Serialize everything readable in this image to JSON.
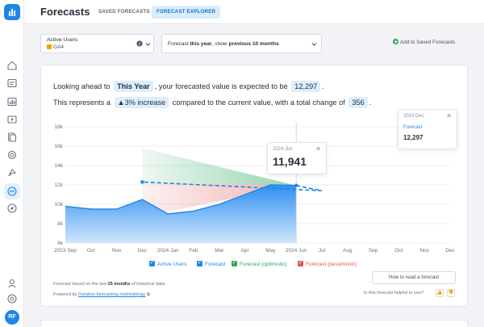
{
  "header": {
    "title": "Forecasts",
    "tabs": [
      {
        "label": "SAVED FORECASTS",
        "active": false
      },
      {
        "label": "FORECAST EXPLORER",
        "active": true
      }
    ]
  },
  "sidebar": {
    "avatar_initials": "RF",
    "items": [
      "home-icon",
      "dashboard-icon",
      "reports-icon",
      "video-icon",
      "datasets-icon",
      "goals-icon",
      "alerts-icon",
      "forecasts-icon",
      "explore-icon"
    ],
    "bottom": [
      "integrations-icon",
      "help-icon"
    ]
  },
  "toolbar": {
    "metric": {
      "name": "Active Users",
      "source": "GA4"
    },
    "range": {
      "prefix": "Forecast ",
      "period": "this year",
      "middle": ", show ",
      "history": "previous 10 months"
    },
    "add_saved": "Add to Saved Forecasts"
  },
  "summary": {
    "l1_pre": "Looking ahead to",
    "period": "This Year",
    "l1_mid": ", your forecasted value is expected to be",
    "forecast_value": "12,297",
    "l2_pre": "This represents a",
    "change_pct": "▲3% increase",
    "l2_mid": "compared to the current value, with a total change of",
    "change_abs": "356"
  },
  "tooltips": {
    "historical": {
      "date": "2024 Jun",
      "value": "11,941"
    },
    "forecast": {
      "date": "2024 Dec",
      "label": "Forecast",
      "value": "12,297"
    }
  },
  "legend": [
    {
      "label": "Active Users"
    },
    {
      "label": "Forecast"
    },
    {
      "label": "Forecast (optimistic)"
    },
    {
      "label": "Forecast (pessimistic)"
    }
  ],
  "footer": {
    "note_pre": "Forecast based on the last",
    "note_bold": "25 months",
    "note_post": "of historical data.",
    "powered_pre": "Powered by",
    "powered_link": "Databox forecasting methodology",
    "how_button": "How to read a forecast",
    "helpful": "Is this forecast helpful to you?"
  },
  "colors": {
    "accent": "#1f86e8",
    "optimistic": "#2daa5e",
    "pessimistic": "#e05757"
  },
  "chart_data": {
    "type": "area",
    "y_ticks": [
      "6k",
      "8k",
      "10k",
      "12k",
      "14k",
      "16k",
      "18k"
    ],
    "ylim": [
      6000,
      18000
    ],
    "x_ticks": [
      "2023 Sep",
      "Oct",
      "Nov",
      "Dec",
      "2024 Jan",
      "Feb",
      "Mar",
      "Apr",
      "May",
      "2024 Jun",
      "Jul",
      "Aug",
      "Sep",
      "Oct",
      "Nov",
      "Dec"
    ],
    "series": [
      {
        "name": "Active Users",
        "x": [
          "2023 Sep",
          "Oct",
          "Nov",
          "Dec",
          "2024 Jan",
          "Feb",
          "Mar",
          "Apr",
          "May",
          "2024 Jun"
        ],
        "values": [
          9800,
          9500,
          9500,
          10500,
          9000,
          9300,
          10000,
          11000,
          12000,
          11941
        ]
      },
      {
        "name": "Forecast",
        "x": [
          "2024 Jun",
          "Jul",
          "Dec"
        ],
        "values": [
          11941,
          11400,
          12297
        ]
      },
      {
        "name": "Forecast (optimistic)",
        "x": [
          "2024 Jun",
          "Dec"
        ],
        "values": [
          11941,
          15800
        ]
      },
      {
        "name": "Forecast (pessimistic)",
        "x": [
          "2024 Jun",
          "Dec"
        ],
        "values": [
          11941,
          8700
        ]
      }
    ]
  }
}
